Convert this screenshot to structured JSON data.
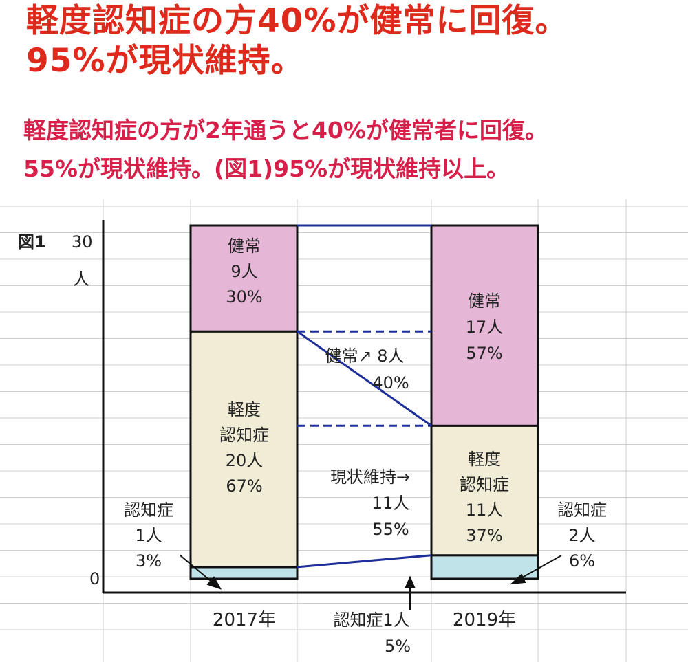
{
  "headline": {
    "line1": "軽度認知症の方40%が健常に回復。",
    "line2": "95%が現状維持。"
  },
  "subtext": {
    "line1": "軽度認知症の方が2年通うと40%が健常者に回復。",
    "line2": "55%が現状維持。(図1)95%が現状維持以上。"
  },
  "colors": {
    "healthy": "#e5b6d6",
    "mild": "#f1ecd6",
    "dementia": "#c0e3ea",
    "flow": "#1f2f9a",
    "headline": "#dd2a1c",
    "subtext": "#d6204a"
  },
  "chart_data": {
    "type": "bar",
    "stacked": true,
    "figure_label": "図1",
    "y_unit": "人",
    "ylim": [
      0,
      30
    ],
    "y_ticks": [
      "30",
      "0"
    ],
    "categories": [
      "2017年",
      "2019年"
    ],
    "series": [
      {
        "name": "認知症",
        "values": [
          1,
          2
        ],
        "percent": [
          "3%",
          "6%"
        ],
        "color": "#c0e3ea"
      },
      {
        "name": "軽度認知症",
        "values": [
          20,
          11
        ],
        "percent": [
          "67%",
          "37%"
        ],
        "color": "#f1ecd6"
      },
      {
        "name": "健常",
        "values": [
          9,
          17
        ],
        "percent": [
          "30%",
          "57%"
        ],
        "color": "#e5b6d6"
      }
    ],
    "labels": {
      "b2017_healthy": [
        "健常",
        "9人",
        "30%"
      ],
      "b2017_mild": [
        "軽度",
        "認知症",
        "20人",
        "67%"
      ],
      "b2017_dementia": [
        "認知症",
        "1人",
        "3%"
      ],
      "b2019_healthy": [
        "健常",
        "17人",
        "57%"
      ],
      "b2019_mild": [
        "軽度",
        "認知症",
        "11人",
        "37%"
      ],
      "b2019_dementia": [
        "認知症",
        "2人",
        "6%"
      ]
    },
    "transitions": [
      {
        "label": [
          "健常↗ 8人",
          "40%"
        ],
        "count": 8,
        "percent": "40%"
      },
      {
        "label": [
          "現状維持→",
          "11人",
          "55%"
        ],
        "count": 11,
        "percent": "55%"
      },
      {
        "label": [
          "認知症1人",
          "5%"
        ],
        "count": 1,
        "percent": "5%"
      }
    ],
    "grid": true
  }
}
